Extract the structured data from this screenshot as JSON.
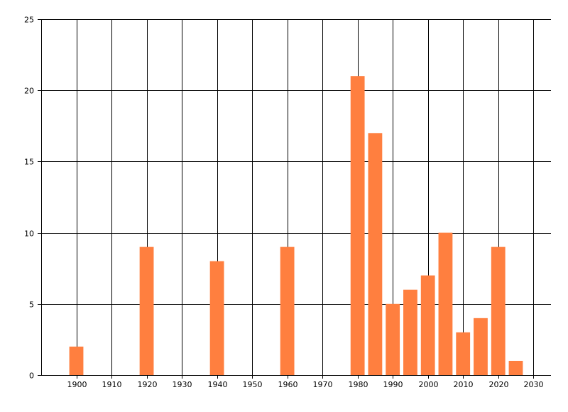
{
  "chart_data": {
    "type": "bar",
    "title": "",
    "xlabel": "",
    "ylabel": "",
    "x": [
      1900,
      1920,
      1940,
      1960,
      1980,
      1985,
      1990,
      1995,
      2000,
      2005,
      2010,
      2015,
      2020,
      2025
    ],
    "values": [
      2,
      9,
      8,
      9,
      21,
      17,
      5,
      6,
      7,
      10,
      3,
      4,
      9,
      1
    ],
    "bar_width_years": 4,
    "xlim": [
      1890,
      2035
    ],
    "ylim": [
      0,
      25
    ],
    "xticks": [
      1900,
      1910,
      1920,
      1930,
      1940,
      1950,
      1960,
      1970,
      1980,
      1990,
      2000,
      2010,
      2020,
      2030
    ],
    "yticks": [
      0,
      5,
      10,
      15,
      20,
      25
    ],
    "grid": true,
    "bar_color": "#ff7f3f",
    "grid_color": "#000000"
  }
}
